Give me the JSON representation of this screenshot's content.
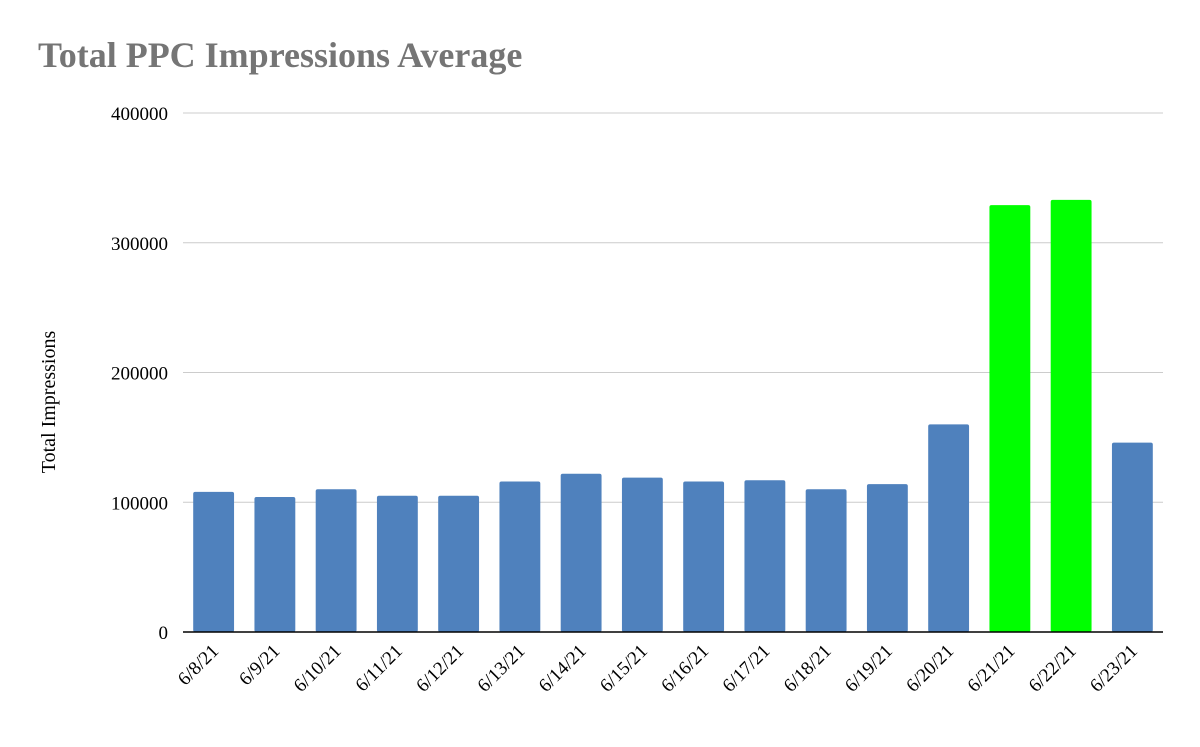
{
  "chart_data": {
    "type": "bar",
    "title": "Total PPC Impressions Average",
    "xlabel": "",
    "ylabel": "Total Impressions",
    "categories": [
      "6/8/21",
      "6/9/21",
      "6/10/21",
      "6/11/21",
      "6/12/21",
      "6/13/21",
      "6/14/21",
      "6/15/21",
      "6/16/21",
      "6/17/21",
      "6/18/21",
      "6/19/21",
      "6/20/21",
      "6/21/21",
      "6/22/21",
      "6/23/21"
    ],
    "values": [
      108000,
      104000,
      110000,
      105000,
      105000,
      116000,
      122000,
      119000,
      116000,
      117000,
      110000,
      114000,
      160000,
      329000,
      333000,
      146000
    ],
    "highlighted": [
      "6/21/21",
      "6/22/21"
    ],
    "ylim": [
      0,
      400000
    ],
    "yticks": [
      0,
      100000,
      200000,
      300000,
      400000
    ],
    "ytick_labels": [
      "0",
      "100000",
      "200000",
      "300000",
      "400000"
    ],
    "grid": true,
    "legend": "none",
    "colors": {
      "bar": "#4f81bd",
      "highlight": "#00ff00",
      "grid": "#cccccc",
      "axis": "#000000",
      "title": "#757575"
    }
  }
}
